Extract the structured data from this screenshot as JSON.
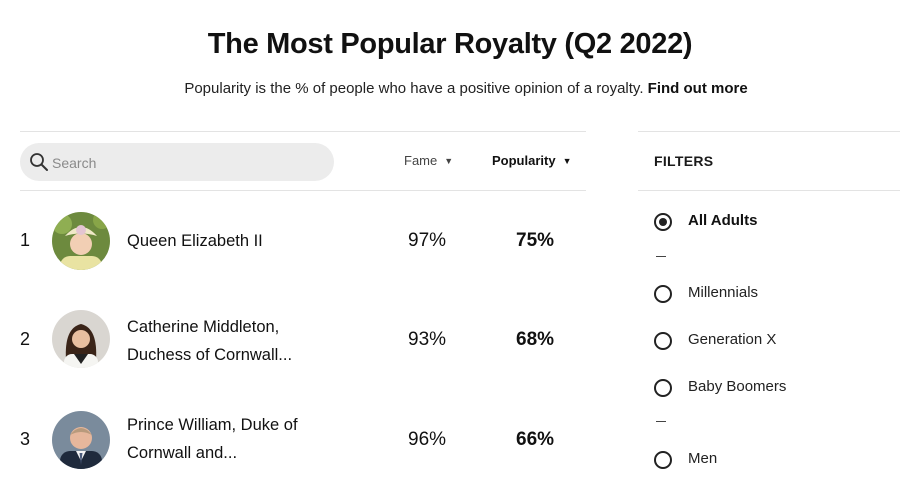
{
  "header": {
    "title": "The Most Popular Royalty (Q2 2022)",
    "subtitle": "Popularity is the % of people who have a positive opinion of a royalty.",
    "find_out_more": "Find out more"
  },
  "search": {
    "placeholder": "Search",
    "icon": "search-icon"
  },
  "columns": {
    "fame": "Fame",
    "popularity": "Popularity",
    "sort_icon": "caret-down-icon"
  },
  "rows": [
    {
      "rank": "1",
      "name_line1": "Queen Elizabeth II",
      "name_line2": "",
      "fame": "97%",
      "popularity": "75%"
    },
    {
      "rank": "2",
      "name_line1": "Catherine Middleton,",
      "name_line2": "Duchess of Cornwall...",
      "fame": "93%",
      "popularity": "68%"
    },
    {
      "rank": "3",
      "name_line1": "Prince William, Duke of",
      "name_line2": "Cornwall and...",
      "fame": "96%",
      "popularity": "66%"
    }
  ],
  "filters": {
    "title": "FILTERS",
    "options": [
      {
        "label": "All Adults",
        "selected": true
      },
      {
        "label": "Millennials",
        "selected": false
      },
      {
        "label": "Generation X",
        "selected": false
      },
      {
        "label": "Baby Boomers",
        "selected": false
      },
      {
        "label": "Men",
        "selected": false
      }
    ]
  }
}
